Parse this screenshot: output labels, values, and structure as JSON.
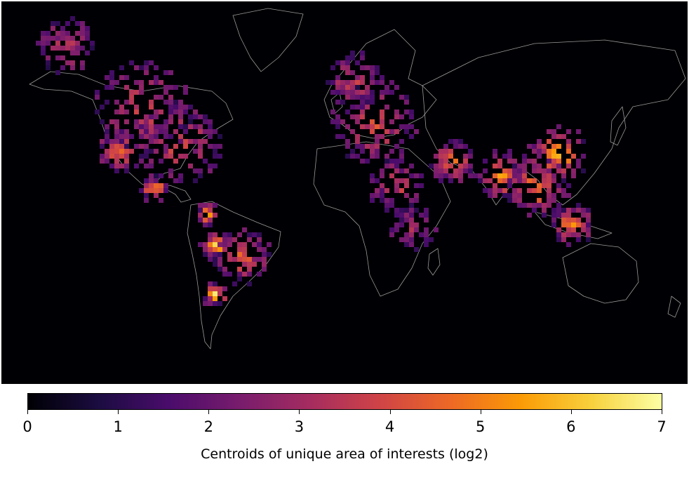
{
  "colorbar": {
    "label": "Centroids of unique area of interests (log2)",
    "min": 0,
    "max": 7,
    "ticks": [
      "0",
      "1",
      "2",
      "3",
      "4",
      "5",
      "6",
      "7"
    ],
    "colormap": "inferno",
    "stops": [
      "#000004",
      "#1b0c41",
      "#4a0c6b",
      "#781c6d",
      "#a52c60",
      "#cf4446",
      "#ed6925",
      "#fb9b06",
      "#f7d13d",
      "#fcffa4"
    ]
  },
  "map": {
    "background": "#000004",
    "borders_color": "#9a9a9a"
  }
}
